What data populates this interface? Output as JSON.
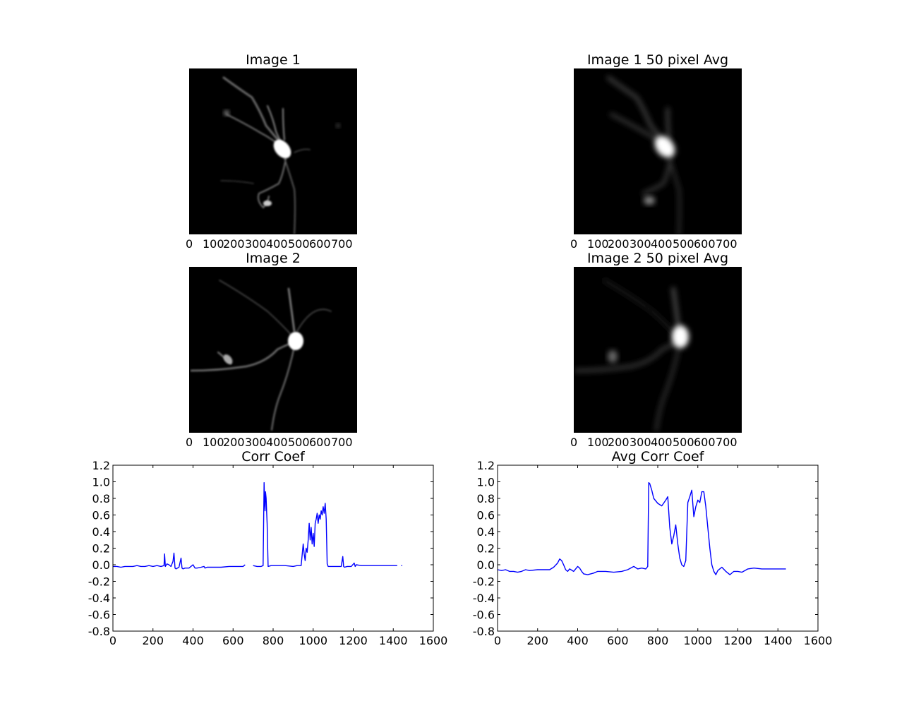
{
  "chart_data": [
    {
      "type": "heatmap",
      "title": "Image 1",
      "x_ticks": [
        "0",
        "100",
        "200",
        "300",
        "400",
        "500",
        "600",
        "700"
      ],
      "colormap": "gray"
    },
    {
      "type": "heatmap",
      "title": "Image 1 50 pixel Avg",
      "x_ticks": [
        "0",
        "100",
        "200",
        "300",
        "400",
        "500",
        "600",
        "700"
      ],
      "colormap": "gray"
    },
    {
      "type": "heatmap",
      "title": "Image 2",
      "x_ticks": [
        "0",
        "100",
        "200",
        "300",
        "400",
        "500",
        "600",
        "700"
      ],
      "colormap": "gray"
    },
    {
      "type": "heatmap",
      "title": "Image 2 50 pixel Avg",
      "x_ticks": [
        "0",
        "100",
        "200",
        "300",
        "400",
        "500",
        "600",
        "700"
      ],
      "colormap": "gray"
    },
    {
      "type": "line",
      "title": "Corr Coef",
      "xlim": [
        0,
        1600
      ],
      "ylim": [
        -0.8,
        1.2
      ],
      "x_ticks": [
        0,
        200,
        400,
        600,
        800,
        1000,
        1200,
        1400,
        1600
      ],
      "y_ticks": [
        -0.8,
        -0.6,
        -0.4,
        -0.2,
        0.0,
        0.2,
        0.4,
        0.6,
        0.8,
        1.0,
        1.2
      ],
      "line_color": "#0000ff",
      "x": [
        0,
        20,
        40,
        60,
        80,
        100,
        120,
        140,
        160,
        180,
        200,
        220,
        240,
        255,
        258,
        262,
        270,
        280,
        290,
        300,
        305,
        310,
        315,
        330,
        340,
        345,
        350,
        360,
        380,
        400,
        410,
        420,
        440,
        455,
        460,
        470,
        500,
        540,
        580,
        620,
        650,
        660,
        null,
        700,
        720,
        740,
        750,
        755,
        757,
        760,
        762,
        765,
        768,
        770,
        775,
        790,
        820,
        860,
        900,
        920,
        940,
        950,
        955,
        960,
        965,
        970,
        975,
        980,
        985,
        990,
        995,
        1000,
        1005,
        1010,
        1015,
        1020,
        1025,
        1030,
        1035,
        1040,
        1045,
        1050,
        1055,
        1060,
        1065,
        1070,
        1075,
        1080,
        1085,
        1100,
        1120,
        1140,
        1148,
        1152,
        1156,
        1170,
        1190,
        1205,
        1210,
        1215,
        1240,
        1280,
        1320,
        1360,
        1400,
        1420,
        null,
        1440,
        1445
      ],
      "y": [
        -0.02,
        -0.02,
        -0.03,
        -0.02,
        -0.02,
        -0.02,
        -0.01,
        -0.02,
        -0.02,
        -0.01,
        -0.02,
        -0.01,
        -0.02,
        -0.01,
        0.13,
        -0.02,
        0.01,
        0.0,
        -0.02,
        0.04,
        0.14,
        -0.04,
        -0.05,
        -0.03,
        0.08,
        -0.04,
        -0.05,
        -0.04,
        -0.04,
        0.0,
        -0.04,
        -0.04,
        -0.03,
        -0.02,
        -0.04,
        -0.03,
        -0.03,
        -0.03,
        -0.02,
        -0.02,
        -0.02,
        0.0,
        null,
        -0.01,
        -0.02,
        -0.02,
        -0.01,
        0.99,
        0.78,
        0.65,
        0.88,
        0.8,
        0.62,
        0.5,
        -0.02,
        -0.01,
        -0.01,
        -0.01,
        -0.02,
        -0.01,
        -0.01,
        0.25,
        0.13,
        0.05,
        0.2,
        0.15,
        0.3,
        0.5,
        0.3,
        0.45,
        0.25,
        0.38,
        0.22,
        0.5,
        0.55,
        0.62,
        0.5,
        0.6,
        0.55,
        0.65,
        0.6,
        0.7,
        0.62,
        0.74,
        0.55,
        0.01,
        -0.02,
        -0.02,
        -0.02,
        -0.02,
        -0.02,
        -0.02,
        0.1,
        -0.02,
        -0.03,
        -0.02,
        -0.02,
        0.02,
        -0.02,
        0.0,
        -0.01,
        -0.01,
        -0.01,
        -0.01,
        -0.01,
        -0.01,
        null,
        -0.01,
        -0.01
      ]
    },
    {
      "type": "line",
      "title": "Avg Corr Coef",
      "xlim": [
        0,
        1600
      ],
      "ylim": [
        -0.8,
        1.2
      ],
      "x_ticks": [
        0,
        200,
        400,
        600,
        800,
        1000,
        1200,
        1400,
        1600
      ],
      "y_ticks": [
        -0.8,
        -0.6,
        -0.4,
        -0.2,
        0.0,
        0.2,
        0.4,
        0.6,
        0.8,
        1.0,
        1.2
      ],
      "line_color": "#0000ff",
      "x": [
        0,
        20,
        40,
        60,
        80,
        100,
        120,
        140,
        160,
        200,
        240,
        260,
        280,
        300,
        310,
        320,
        330,
        340,
        350,
        360,
        380,
        400,
        410,
        420,
        430,
        450,
        480,
        500,
        540,
        580,
        620,
        650,
        680,
        700,
        720,
        740,
        750,
        755,
        760,
        770,
        780,
        800,
        820,
        840,
        850,
        860,
        870,
        880,
        890,
        900,
        910,
        920,
        930,
        940,
        950,
        960,
        970,
        980,
        990,
        1000,
        1010,
        1020,
        1030,
        1040,
        1050,
        1060,
        1070,
        1080,
        1090,
        1100,
        1120,
        1140,
        1160,
        1180,
        1200,
        1220,
        1250,
        1280,
        1320,
        1360,
        1400,
        1440
      ],
      "y": [
        -0.06,
        -0.07,
        -0.06,
        -0.08,
        -0.08,
        -0.09,
        -0.08,
        -0.06,
        -0.07,
        -0.06,
        -0.06,
        -0.06,
        -0.03,
        0.02,
        0.07,
        0.05,
        0.0,
        -0.06,
        -0.08,
        -0.05,
        -0.08,
        -0.02,
        -0.04,
        -0.08,
        -0.11,
        -0.12,
        -0.1,
        -0.08,
        -0.08,
        -0.09,
        -0.08,
        -0.06,
        -0.02,
        -0.05,
        -0.04,
        -0.05,
        -0.02,
        0.99,
        0.98,
        0.9,
        0.8,
        0.74,
        0.71,
        0.78,
        0.82,
        0.45,
        0.25,
        0.35,
        0.48,
        0.25,
        0.08,
        0.0,
        -0.02,
        0.05,
        0.75,
        0.82,
        0.9,
        0.58,
        0.7,
        0.78,
        0.75,
        0.88,
        0.88,
        0.7,
        0.45,
        0.2,
        0.0,
        -0.08,
        -0.12,
        -0.07,
        -0.03,
        -0.08,
        -0.12,
        -0.08,
        -0.08,
        -0.09,
        -0.05,
        -0.04,
        -0.05,
        -0.05,
        -0.05,
        -0.05
      ]
    }
  ]
}
